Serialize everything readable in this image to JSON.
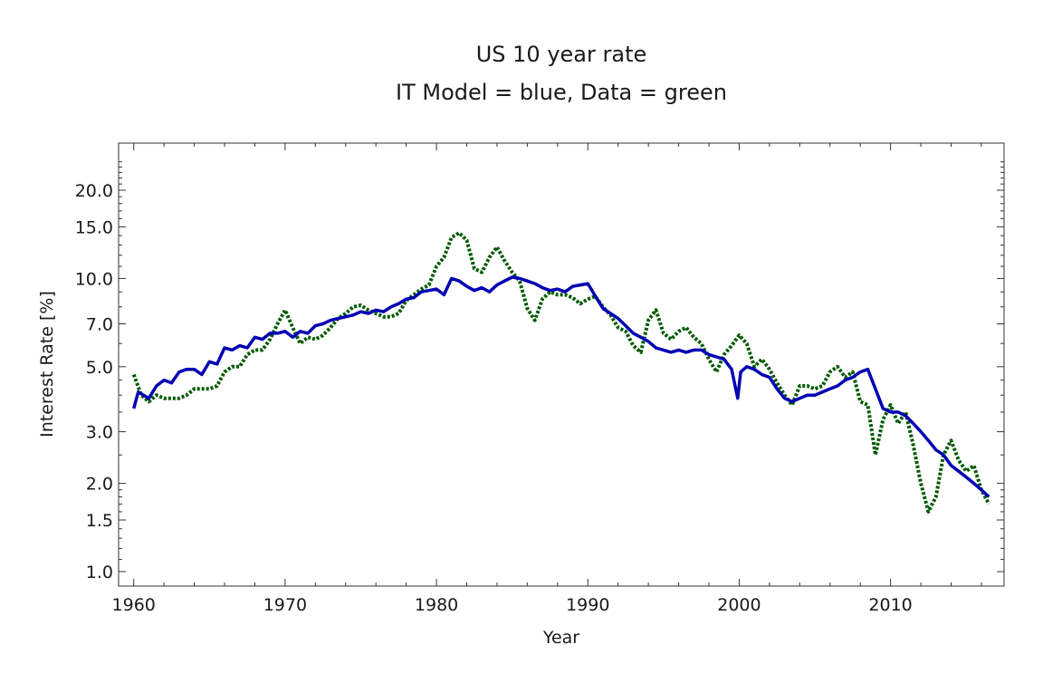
{
  "chart_data": {
    "type": "line",
    "title": "US 10 year rate",
    "subtitle": "IT Model = blue, Data = green",
    "xlabel": "Year",
    "ylabel": "Interest Rate [%]",
    "xlim": [
      1959,
      2017.5
    ],
    "ylim": [
      0.9,
      25
    ],
    "yscale": "log",
    "x_ticks": [
      1960,
      1970,
      1980,
      1990,
      2000,
      2010
    ],
    "x_tick_labels": [
      "1960",
      "1970",
      "1980",
      "1990",
      "2000",
      "2010"
    ],
    "y_ticks": [
      1.0,
      1.5,
      2.0,
      3.0,
      5.0,
      7.0,
      10.0,
      15.0,
      20.0
    ],
    "y_tick_labels": [
      "1.0",
      "1.5",
      "2.0",
      "3.0",
      "5.0",
      "7.0",
      "10.0",
      "15.0",
      "20.0"
    ],
    "series": [
      {
        "name": "IT Model",
        "color": "#0000b4",
        "style": "solid",
        "x": [
          1960,
          1960.3,
          1961,
          1961.5,
          1962,
          1962.5,
          1963,
          1963.5,
          1964,
          1964.5,
          1965,
          1965.5,
          1966,
          1966.5,
          1967,
          1967.5,
          1968,
          1968.5,
          1969,
          1969.5,
          1970,
          1970.5,
          1971,
          1971.5,
          1972,
          1972.5,
          1973,
          1973.5,
          1974,
          1974.5,
          1975,
          1975.5,
          1976,
          1976.5,
          1977,
          1977.5,
          1978,
          1978.5,
          1979,
          1979.5,
          1980,
          1980.5,
          1981,
          1981.5,
          1982,
          1982.5,
          1983,
          1983.5,
          1984,
          1984.5,
          1985,
          1985.5,
          1986,
          1986.5,
          1987,
          1987.5,
          1988,
          1988.5,
          1989,
          1989.5,
          1990,
          1990.5,
          1991,
          1991.5,
          1992,
          1992.5,
          1993,
          1993.5,
          1994,
          1994.5,
          1995,
          1995.5,
          1996,
          1996.5,
          1997,
          1997.5,
          1998,
          1998.5,
          1999,
          1999.5,
          1999.9,
          2000.1,
          2000.5,
          2001,
          2001.5,
          2002,
          2002.5,
          2003,
          2003.5,
          2004,
          2004.5,
          2005,
          2005.5,
          2006,
          2006.5,
          2007,
          2007.5,
          2008,
          2008.5,
          2009,
          2009.5,
          2010,
          2010.5,
          2011,
          2011.5,
          2012,
          2012.5,
          2013,
          2013.5,
          2014,
          2014.5,
          2015,
          2015.5,
          2016,
          2016.5
        ],
        "values": [
          3.6,
          4.1,
          3.9,
          4.3,
          4.5,
          4.4,
          4.8,
          4.9,
          4.9,
          4.7,
          5.2,
          5.1,
          5.8,
          5.7,
          5.9,
          5.8,
          6.3,
          6.2,
          6.5,
          6.5,
          6.6,
          6.3,
          6.6,
          6.5,
          6.9,
          7.0,
          7.2,
          7.3,
          7.4,
          7.5,
          7.7,
          7.6,
          7.8,
          7.7,
          8.0,
          8.2,
          8.5,
          8.6,
          9.0,
          9.1,
          9.2,
          8.8,
          10.0,
          9.8,
          9.4,
          9.1,
          9.3,
          9.0,
          9.5,
          9.8,
          10.1,
          10.0,
          9.8,
          9.6,
          9.3,
          9.1,
          9.2,
          9.0,
          9.4,
          9.5,
          9.6,
          8.7,
          7.9,
          7.6,
          7.3,
          6.9,
          6.5,
          6.3,
          6.1,
          5.8,
          5.7,
          5.6,
          5.7,
          5.6,
          5.7,
          5.7,
          5.5,
          5.4,
          5.3,
          4.9,
          3.9,
          4.8,
          5.0,
          4.9,
          4.7,
          4.6,
          4.2,
          3.9,
          3.8,
          3.9,
          4.0,
          4.0,
          4.1,
          4.2,
          4.3,
          4.5,
          4.6,
          4.8,
          4.9,
          4.2,
          3.6,
          3.5,
          3.5,
          3.4,
          3.2,
          3.0,
          2.8,
          2.6,
          2.5,
          2.3,
          2.2,
          2.1,
          2.0,
          1.9,
          1.8
        ]
      },
      {
        "name": "Data",
        "color": "#005a00",
        "style": "dotted",
        "x": [
          1960,
          1960.5,
          1961,
          1961.5,
          1962,
          1962.5,
          1963,
          1963.5,
          1964,
          1964.5,
          1965,
          1965.5,
          1966,
          1966.5,
          1967,
          1967.5,
          1968,
          1968.5,
          1969,
          1969.5,
          1970,
          1970.5,
          1971,
          1971.5,
          1972,
          1972.5,
          1973,
          1973.5,
          1974,
          1974.5,
          1975,
          1975.5,
          1976,
          1976.5,
          1977,
          1977.5,
          1978,
          1978.5,
          1979,
          1979.5,
          1980,
          1980.5,
          1981,
          1981.5,
          1982,
          1982.5,
          1983,
          1983.5,
          1984,
          1984.5,
          1985,
          1985.5,
          1986,
          1986.5,
          1987,
          1987.5,
          1988,
          1988.5,
          1989,
          1989.5,
          1990,
          1990.5,
          1991,
          1991.5,
          1992,
          1992.5,
          1993,
          1993.5,
          1994,
          1994.5,
          1995,
          1995.5,
          1996,
          1996.5,
          1997,
          1997.5,
          1998,
          1998.5,
          1999,
          1999.5,
          2000,
          2000.5,
          2001,
          2001.5,
          2002,
          2002.5,
          2003,
          2003.5,
          2004,
          2004.5,
          2005,
          2005.5,
          2006,
          2006.5,
          2007,
          2007.5,
          2008,
          2008.5,
          2009,
          2009.5,
          2010,
          2010.5,
          2011,
          2011.5,
          2012,
          2012.5,
          2013,
          2013.5,
          2014,
          2014.5,
          2015,
          2015.5,
          2016,
          2016.5
        ],
        "values": [
          4.7,
          4.0,
          3.8,
          4.0,
          3.9,
          3.9,
          3.9,
          4.0,
          4.2,
          4.2,
          4.2,
          4.3,
          4.8,
          5.0,
          5.0,
          5.5,
          5.7,
          5.7,
          6.2,
          7.0,
          7.8,
          6.8,
          6.0,
          6.3,
          6.2,
          6.4,
          6.8,
          7.3,
          7.6,
          8.0,
          8.1,
          7.8,
          7.6,
          7.4,
          7.4,
          7.6,
          8.4,
          8.8,
          9.2,
          9.5,
          11.0,
          11.8,
          13.8,
          14.3,
          13.5,
          10.8,
          10.5,
          11.8,
          12.8,
          11.5,
          10.5,
          9.8,
          7.9,
          7.2,
          8.5,
          9.0,
          8.8,
          8.8,
          8.6,
          8.2,
          8.5,
          8.7,
          8.0,
          7.5,
          6.8,
          6.6,
          5.9,
          5.6,
          7.2,
          7.8,
          6.5,
          6.2,
          6.6,
          6.8,
          6.3,
          6.0,
          5.3,
          4.8,
          5.5,
          5.9,
          6.4,
          6.0,
          5.0,
          5.3,
          4.9,
          4.4,
          4.0,
          3.7,
          4.3,
          4.3,
          4.2,
          4.3,
          4.8,
          5.0,
          4.6,
          4.8,
          3.8,
          3.7,
          2.5,
          3.3,
          3.7,
          3.2,
          3.5,
          2.7,
          2.0,
          1.6,
          1.8,
          2.5,
          2.8,
          2.4,
          2.2,
          2.3,
          1.9,
          1.7
        ]
      }
    ]
  }
}
